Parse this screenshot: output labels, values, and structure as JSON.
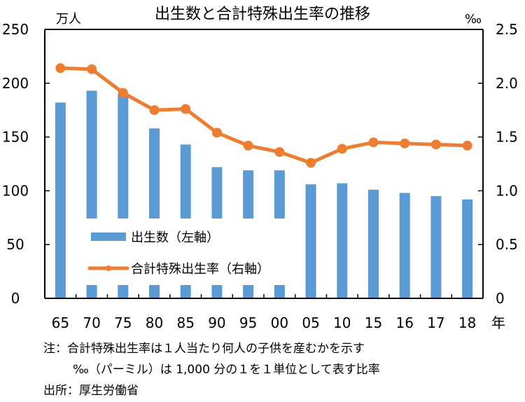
{
  "chart_data": {
    "type": "bar+line",
    "title": "出生数と合計特殊出生率の推移",
    "left_unit": "万人",
    "right_unit": "‰",
    "x_unit": "年",
    "categories": [
      "65",
      "70",
      "75",
      "80",
      "85",
      "90",
      "95",
      "00",
      "05",
      "10",
      "15",
      "16",
      "17",
      "18"
    ],
    "left_axis": {
      "ylim": [
        0,
        250
      ],
      "ticks": [
        "0",
        "50",
        "100",
        "150",
        "200",
        "250"
      ]
    },
    "right_axis": {
      "ylim": [
        0,
        2.5
      ],
      "ticks": [
        "0",
        "0.5",
        "1.0",
        "1.5",
        "2.0",
        "2.5"
      ]
    },
    "series": [
      {
        "name": "出生数（左軸）",
        "type": "bar",
        "axis": "left",
        "color": "#5b9bd5",
        "values": [
          182,
          193,
          190,
          158,
          143,
          122,
          119,
          119,
          106,
          107,
          101,
          98,
          95,
          92
        ]
      },
      {
        "name": "合計特殊出生率（右軸）",
        "type": "line",
        "axis": "right",
        "color": "#ed7d31",
        "values": [
          2.14,
          2.13,
          1.91,
          1.75,
          1.76,
          1.54,
          1.42,
          1.36,
          1.26,
          1.39,
          1.45,
          1.44,
          1.43,
          1.42
        ]
      }
    ],
    "legend": [
      "出生数（左軸）",
      "合計特殊出生率（右軸）"
    ],
    "legend_position": "lower-left inside"
  },
  "notes": {
    "note1": "注：合計特殊出生率は１人当たり何人の子供を産むかを示す",
    "note2": "‰（パーミル）は 1,000 分の１を１単位として表す比率",
    "source": "出所：厚生労働省"
  }
}
